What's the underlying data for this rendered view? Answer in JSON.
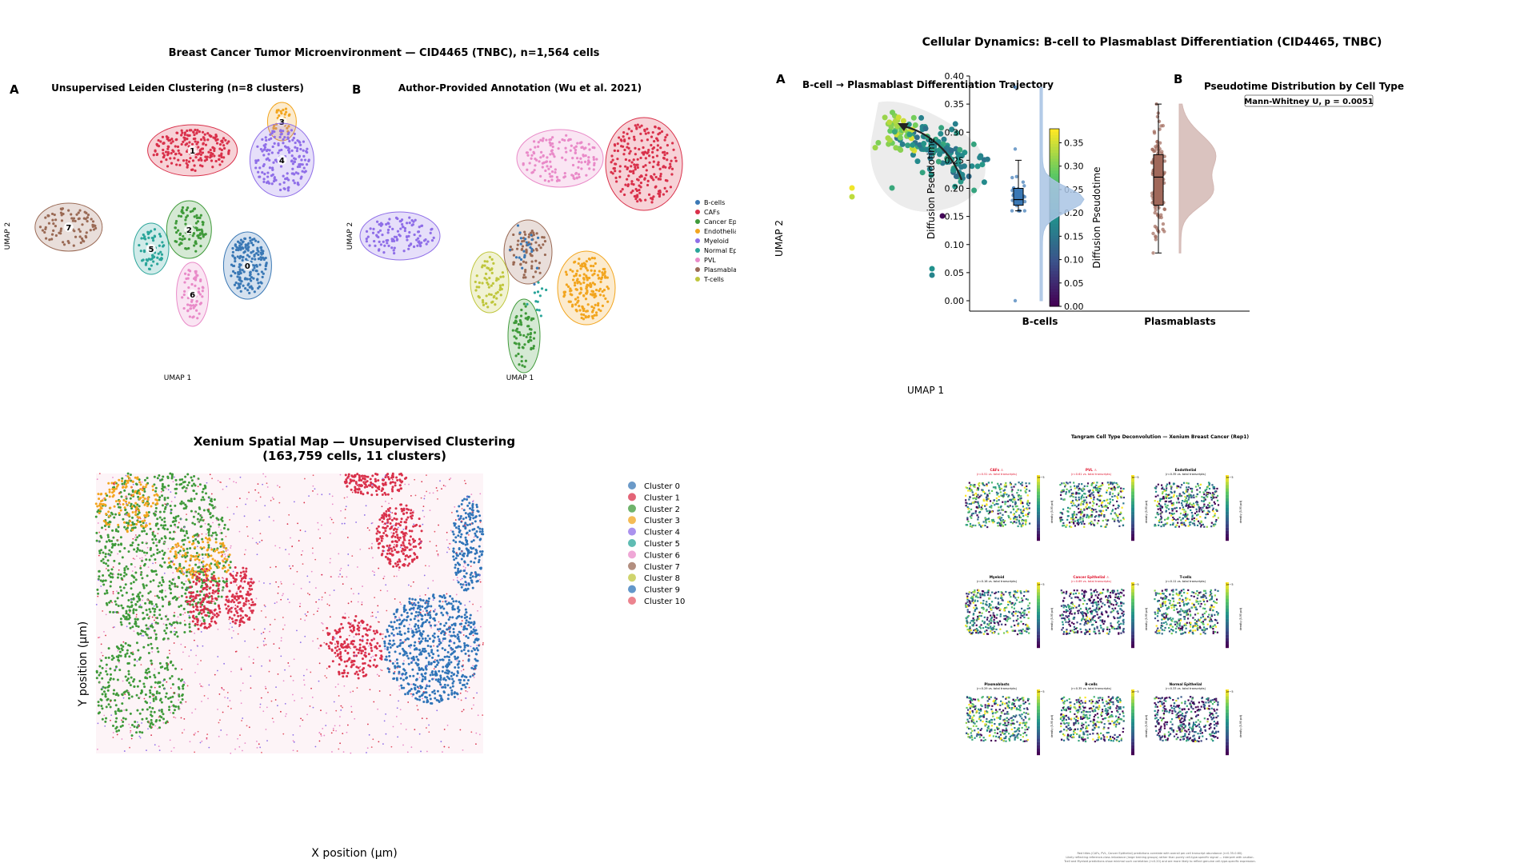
{
  "colors": {
    "c0": "#3a78b5",
    "c1": "#d9304a",
    "c2": "#3f9a3a",
    "c3": "#f2a51e",
    "c4": "#8f6ee8",
    "c5": "#2aa59a",
    "c6": "#e98ac8",
    "c7": "#9a6a55",
    "c8": "#bfc63c",
    "c9": "#2f74b8",
    "c10": "#e55b6a",
    "viridis_low": "#440154",
    "viridis_mid": "#21918c",
    "viridis_high": "#fde725"
  },
  "tl": {
    "suptitle": "Breast Cancer Tumor Microenvironment — CID4465 (TNBC), n=1,564 cells",
    "panelA": {
      "letter": "A",
      "title": "Unsupervised Leiden Clustering (n=8 clusters)",
      "xlabel": "UMAP 1",
      "ylabel": "UMAP 2",
      "cluster_labels": [
        "0",
        "1",
        "2",
        "3",
        "4",
        "5",
        "6",
        "7"
      ]
    },
    "panelB": {
      "letter": "B",
      "title": "Author-Provided Annotation (Wu et al. 2021)",
      "xlabel": "UMAP 1",
      "ylabel": "UMAP 2"
    },
    "legend": [
      "B-cells",
      "CAFs",
      "Cancer Epithelial",
      "Endothelial",
      "Myeloid",
      "Normal Epithelial",
      "PVL",
      "Plasmablasts",
      "T-cells"
    ]
  },
  "tr": {
    "suptitle": "Cellular Dynamics: B-cell to Plasmablast Differentiation (CID4465, TNBC)",
    "panelA": {
      "letter": "A",
      "title": "B-cell → Plasmablast Differentiation Trajectory",
      "xlabel": "UMAP 1",
      "ylabel": "UMAP 2",
      "cbar_label": "Diffusion Pseudotime",
      "cbar_ticks": [
        "0.00",
        "0.05",
        "0.10",
        "0.15",
        "0.20",
        "0.25",
        "0.30",
        "0.35"
      ]
    },
    "panelB": {
      "letter": "B",
      "title": "Pseudotime Distribution by Cell Type",
      "ylabel": "Diffusion Pseudotime",
      "annotation": "Mann-Whitney U, p = 0.0051",
      "yticks": [
        "0.00",
        "0.05",
        "0.10",
        "0.15",
        "0.20",
        "0.25",
        "0.30",
        "0.35",
        "0.40"
      ],
      "categories": [
        "B-cells",
        "Plasmablasts"
      ]
    }
  },
  "bl": {
    "title_line1": "Xenium Spatial Map — Unsupervised Clustering",
    "title_line2": "(163,759 cells, 11 clusters)",
    "xlabel": "X position (μm)",
    "ylabel": "Y position (μm)",
    "legend": [
      "Cluster 0",
      "Cluster 1",
      "Cluster 2",
      "Cluster 3",
      "Cluster 4",
      "Cluster 5",
      "Cluster 6",
      "Cluster 7",
      "Cluster 8",
      "Cluster 9",
      "Cluster 10"
    ]
  },
  "br": {
    "title": "Tangram Cell Type Deconvolution — Xenium Breast Cancer (Rep1)",
    "cbar_label": "density (5-95 pct)",
    "exp": "1e−5",
    "panels": [
      {
        "name": "CAFs",
        "stat": "(r=0.51 vs. total transcripts)",
        "flag": true
      },
      {
        "name": "PVL",
        "stat": "(r=0.61 vs. total transcripts)",
        "flag": true
      },
      {
        "name": "Endothelial",
        "stat": "(r=0.35 vs. total transcripts)",
        "flag": false
      },
      {
        "name": "Myeloid",
        "stat": "(r=0.16 vs. total transcripts)",
        "flag": false
      },
      {
        "name": "Cancer Epithelial",
        "stat": "(r=0.69 vs. total transcripts)",
        "flag": true
      },
      {
        "name": "T-cells",
        "stat": "(r=0.11 vs. total transcripts)",
        "flag": false
      },
      {
        "name": "Plasmablasts",
        "stat": "(r=0.29 vs. total transcripts)",
        "flag": false
      },
      {
        "name": "B-cells",
        "stat": "(r=0.35 vs. total transcripts)",
        "flag": false
      },
      {
        "name": "Normal Epithelial",
        "stat": "(r=0.33 vs. total transcripts)",
        "flag": false
      }
    ],
    "footnote1": "Red titles (CAFs, PVL, Cancer Epithelial) predictions correlate with overall per-cell transcript abundance (r>0.35-0.60).",
    "footnote2": "Likely reflecting reference-class imbalance (large training groups) rather than purely cell-type-specific signal — interpret with caution.",
    "footnote3": "Tcell and Myeloid predictions show minimal such correlation (r<0.20) and are more likely to reflect genuine cell-type-specific expression."
  },
  "chart_data": [
    {
      "type": "scatter",
      "title": "Unsupervised Leiden Clustering (n=8 clusters)",
      "xlabel": "UMAP 1",
      "ylabel": "UMAP 2",
      "series": [
        {
          "name": "0",
          "centroid": [
            5.8,
            -1.4
          ]
        },
        {
          "name": "1",
          "centroid": [
            4.2,
            3.4
          ]
        },
        {
          "name": "2",
          "centroid": [
            4.1,
            0.1
          ]
        },
        {
          "name": "3",
          "centroid": [
            6.8,
            4.6
          ]
        },
        {
          "name": "4",
          "centroid": [
            6.8,
            3.0
          ]
        },
        {
          "name": "5",
          "centroid": [
            3.0,
            -0.7
          ]
        },
        {
          "name": "6",
          "centroid": [
            4.2,
            -2.6
          ]
        },
        {
          "name": "7",
          "centroid": [
            0.6,
            0.2
          ]
        }
      ]
    },
    {
      "type": "scatter",
      "title": "Author-Provided Annotation (Wu et al. 2021)",
      "xlabel": "UMAP 1",
      "ylabel": "UMAP 2",
      "series": [
        {
          "name": "B-cells"
        },
        {
          "name": "CAFs"
        },
        {
          "name": "Cancer Epithelial"
        },
        {
          "name": "Endothelial"
        },
        {
          "name": "Myeloid"
        },
        {
          "name": "Normal Epithelial"
        },
        {
          "name": "PVL"
        },
        {
          "name": "Plasmablasts"
        },
        {
          "name": "T-cells"
        }
      ]
    },
    {
      "type": "scatter",
      "title": "B-cell → Plasmablast Differentiation Trajectory",
      "xlabel": "UMAP 1",
      "ylabel": "UMAP 2",
      "colorbar": {
        "label": "Diffusion Pseudotime",
        "range": [
          0.0,
          0.38
        ]
      }
    },
    {
      "type": "box",
      "title": "Pseudotime Distribution by Cell Type",
      "ylabel": "Diffusion Pseudotime",
      "ylim": [
        0,
        0.4
      ],
      "categories": [
        "B-cells",
        "Plasmablasts"
      ],
      "series": [
        {
          "name": "B-cells",
          "median": 0.18,
          "q1": 0.17,
          "q3": 0.2,
          "whisker_low": 0.16,
          "whisker_high": 0.25,
          "outliers": [
            0.27,
            0.38,
            0.0
          ]
        },
        {
          "name": "Plasmablasts",
          "median": 0.22,
          "q1": 0.17,
          "q3": 0.26,
          "whisker_low": 0.085,
          "whisker_high": 0.35,
          "outliers": []
        }
      ],
      "annotation": "Mann-Whitney U, p = 0.0051"
    },
    {
      "type": "scatter",
      "title": "Xenium Spatial Map — Unsupervised Clustering (163,759 cells, 11 clusters)",
      "xlabel": "X position (μm)",
      "ylabel": "Y position (μm)",
      "series": [
        {
          "name": "Cluster 0"
        },
        {
          "name": "Cluster 1"
        },
        {
          "name": "Cluster 2"
        },
        {
          "name": "Cluster 3"
        },
        {
          "name": "Cluster 4"
        },
        {
          "name": "Cluster 5"
        },
        {
          "name": "Cluster 6"
        },
        {
          "name": "Cluster 7"
        },
        {
          "name": "Cluster 8"
        },
        {
          "name": "Cluster 9"
        },
        {
          "name": "Cluster 10"
        }
      ]
    },
    {
      "type": "heatmap",
      "title": "Tangram Cell Type Deconvolution — Xenium Breast Cancer (Rep1)",
      "panels": [
        "CAFs",
        "PVL",
        "Endothelial",
        "Myeloid",
        "Cancer Epithelial",
        "T-cells",
        "Plasmablasts",
        "B-cells",
        "Normal Epithelial"
      ],
      "correlations": [
        0.51,
        0.61,
        0.35,
        0.16,
        0.69,
        0.11,
        0.29,
        0.35,
        0.33
      ]
    }
  ]
}
